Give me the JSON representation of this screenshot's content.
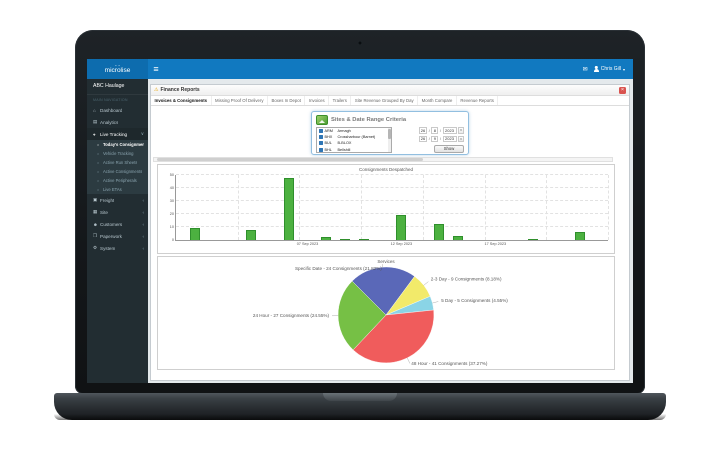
{
  "icons": {
    "hamburger": "≡",
    "mail": "✉",
    "warning": "⚠",
    "close": "×",
    "caret": "▾",
    "dropdown": "∨"
  },
  "app": {
    "brand": {
      "logo_text": "microlise"
    },
    "topbar": {
      "user_name": "Chris Gill"
    },
    "sidebar": {
      "company": "ABC Haulage",
      "section_header": "MAIN NAVIGATION",
      "items": [
        {
          "label": "Dashboard",
          "icon": "dashboard-icon",
          "glyph": "⌂",
          "type": "item"
        },
        {
          "label": "Analytics",
          "icon": "analytics-icon",
          "glyph": "▤",
          "type": "item"
        },
        {
          "label": "Live Tracking",
          "icon": "map-marker-icon",
          "glyph": "⌖",
          "type": "item",
          "state": "expanded"
        },
        {
          "label": "Today's Consignments",
          "icon": "circle-icon",
          "glyph": "○",
          "type": "subitem",
          "state": "active"
        },
        {
          "label": "Vehicle Tracking",
          "icon": "circle-icon",
          "glyph": "○",
          "type": "subitem"
        },
        {
          "label": "Active Run Sheets",
          "icon": "circle-icon",
          "glyph": "○",
          "type": "subitem"
        },
        {
          "label": "Active Consignments",
          "icon": "circle-icon",
          "glyph": "○",
          "type": "subitem"
        },
        {
          "label": "Active Peripherals",
          "icon": "circle-icon",
          "glyph": "○",
          "type": "subitem"
        },
        {
          "label": "Live ETAs",
          "icon": "circle-icon",
          "glyph": "○",
          "type": "subitem"
        },
        {
          "label": "Freight",
          "icon": "truck-icon",
          "glyph": "▣",
          "type": "item",
          "chevron": "‹"
        },
        {
          "label": "Site",
          "icon": "building-icon",
          "glyph": "▦",
          "type": "item",
          "chevron": "‹"
        },
        {
          "label": "Customers",
          "icon": "users-icon",
          "glyph": "☻",
          "type": "item",
          "chevron": "‹"
        },
        {
          "label": "Paperwork",
          "icon": "documents-icon",
          "glyph": "❒",
          "type": "item",
          "chevron": "‹"
        },
        {
          "label": "System",
          "icon": "gear-icon",
          "glyph": "⚙",
          "type": "item",
          "chevron": "‹"
        }
      ]
    },
    "report": {
      "title": "Finance Reports",
      "tabs": [
        {
          "label": "Invoices & Consignments",
          "active": true
        },
        {
          "label": "Missing Proof Of Delivery"
        },
        {
          "label": "Boxes In Depot"
        },
        {
          "label": "Invoices"
        },
        {
          "label": "Trailers"
        },
        {
          "label": "Site Revenue Grouped By Day"
        },
        {
          "label": "Month Compare"
        },
        {
          "label": "Revenue Reports"
        }
      ]
    },
    "criteria": {
      "title": "Sites & Date Range Criteria",
      "sites": [
        {
          "code": "ARM",
          "name": "Armagh",
          "checked": true
        },
        {
          "code": "BHX",
          "name": "Crossharbour (Barnet)",
          "checked": true
        },
        {
          "code": "BUL",
          "name": "B-BLOX",
          "checked": true
        },
        {
          "code": "BHL",
          "name": "Bellshill",
          "checked": true
        }
      ],
      "date_from": {
        "day": "26",
        "month": "8",
        "year": "2023"
      },
      "date_to": {
        "day": "26",
        "month": "9",
        "year": "2023"
      },
      "show_button": "Show"
    },
    "colors": {
      "navbar_blue": "#1179c0",
      "sidebar_dark": "#222d32",
      "bar_green": "#4cb140",
      "close_red": "#d9534f"
    }
  },
  "chart_data": [
    {
      "type": "bar",
      "title": "Consignments Despatched",
      "ylim": [
        0,
        50
      ],
      "yticks": [
        0,
        10,
        20,
        30,
        40,
        50
      ],
      "x_domain_days": 23,
      "bar_color": "#4cb140",
      "grid": true,
      "bars": [
        {
          "date": "01 Sep 2023",
          "day": 1,
          "value": 9
        },
        {
          "date": "04 Sep 2023",
          "day": 4,
          "value": 8
        },
        {
          "date": "06 Sep 2023",
          "day": 6,
          "value": 48
        },
        {
          "date": "08 Sep 2023",
          "day": 8,
          "value": 2
        },
        {
          "date": "09 Sep 2023",
          "day": 9,
          "value": 1
        },
        {
          "date": "10 Sep 2023",
          "day": 10,
          "value": 1
        },
        {
          "date": "12 Sep 2023",
          "day": 12,
          "value": 19
        },
        {
          "date": "14 Sep 2023",
          "day": 14,
          "value": 12
        },
        {
          "date": "15 Sep 2023",
          "day": 15,
          "value": 3
        },
        {
          "date": "19 Sep 2023",
          "day": 19,
          "value": 1
        },
        {
          "date": "21 Sep 2023",
          "day": 21.5,
          "value": 6
        }
      ],
      "xticks": [
        {
          "day": 7,
          "label": "07 Sep 2023"
        },
        {
          "day": 12,
          "label": "12 Sep 2023"
        },
        {
          "day": 17,
          "label": "17 Sep 2023"
        }
      ]
    },
    {
      "type": "pie",
      "title": "Services",
      "start_angle_deg": -45,
      "legend_position": "labels-with-leader-lines",
      "slices": [
        {
          "name": "Specific Date",
          "count": 24,
          "pct": "21.82%",
          "label": "Specific Date - 24 Consignments (21.82%)",
          "color": "#5a68b8"
        },
        {
          "name": "2-3 Day",
          "count": 9,
          "pct": "8.18%",
          "label": "2-3 Day - 9 Consignments (8.18%)",
          "color": "#f2ea6a"
        },
        {
          "name": "5 Day",
          "count": 5,
          "pct": "4.55%",
          "label": "5 Day - 5 Consignments (4.55%)",
          "color": "#8ad4e6"
        },
        {
          "name": "48 Hour",
          "count": 41,
          "pct": "37.27%",
          "label": "48 Hour - 41 Consignments (37.27%)",
          "color": "#f05c5c"
        },
        {
          "name": "24 Hour",
          "count": 27,
          "pct": "24.55%",
          "label": "24 Hour - 27 Consignments (24.55%)",
          "color": "#76c045"
        }
      ]
    }
  ]
}
